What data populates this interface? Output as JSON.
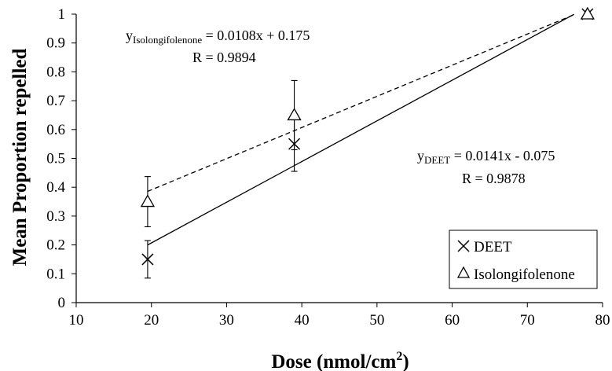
{
  "chart_data": {
    "type": "scatter",
    "xlabel": "Dose (nmol/cm",
    "xlabel_superscript": "2",
    "xlabel_close": ")",
    "ylabel": "Mean Proportion repelled",
    "xlim": [
      10,
      80
    ],
    "ylim": [
      0,
      1
    ],
    "x_ticks": [
      10,
      20,
      30,
      40,
      50,
      60,
      70,
      80
    ],
    "y_ticks": [
      0,
      0.1,
      0.2,
      0.3,
      0.4,
      0.5,
      0.6,
      0.7,
      0.8,
      0.9,
      1
    ],
    "x_tick_labels": [
      "10",
      "20",
      "30",
      "40",
      "50",
      "60",
      "70",
      "80"
    ],
    "y_tick_labels": [
      "0",
      "0.1",
      "0.2",
      "0.3",
      "0.4",
      "0.5",
      "0.6",
      "0.7",
      "0.8",
      "0.9",
      "1"
    ],
    "grid": false,
    "legend_position": "bottom-right",
    "series": [
      {
        "name": "DEET",
        "marker": "x",
        "line_style": "solid",
        "x": [
          19.5,
          39,
          78
        ],
        "y": [
          0.15,
          0.55,
          1.0
        ],
        "error": [
          0.065,
          0.095,
          0
        ],
        "fit": {
          "slope": 0.0141,
          "intercept": -0.075,
          "x_range": [
            19.5,
            76.2
          ]
        },
        "equation_label": "y",
        "equation_subscript": "DEET",
        "equation_rhs": " = 0.0141x - 0.075",
        "r_label": "R = 0.9878"
      },
      {
        "name": "Isolongifolenone",
        "marker": "triangle",
        "line_style": "dashed",
        "x": [
          19.5,
          39,
          78
        ],
        "y": [
          0.35,
          0.65,
          1.0
        ],
        "error": [
          0.087,
          0.12,
          0
        ],
        "fit": {
          "slope": 0.0108,
          "intercept": 0.175,
          "x_range": [
            19.5,
            76.2
          ]
        },
        "equation_label": "y",
        "equation_subscript": "Isolongifolenone",
        "equation_rhs": " = 0.0108x + 0.175",
        "r_label": "R = 0.9894"
      }
    ]
  },
  "colors": {
    "ink": "#000000",
    "background": "#ffffff"
  }
}
